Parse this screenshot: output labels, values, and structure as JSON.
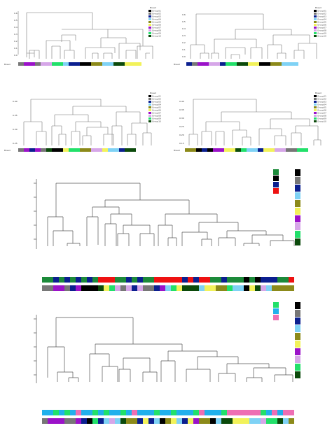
{
  "figure": {
    "panels": [
      {
        "id": "a",
        "strip_label": "Breed",
        "legend_label": "Breed",
        "legend_items": [
          "Group01",
          "Group02",
          "Group03",
          "Group04",
          "Group05",
          "Group06",
          "Group07",
          "Group08",
          "Group09",
          "Group10"
        ],
        "y_ticks": [
          "0.6",
          "0.5",
          "0.4",
          "0.3",
          "0.2",
          "0.1",
          "0.0"
        ]
      },
      {
        "id": "b",
        "strip_label": "Breed",
        "legend_label": "Breed",
        "legend_items": [
          "Group01",
          "Group02",
          "Group03",
          "Group04",
          "Group05",
          "Group06",
          "Group07",
          "Group08",
          "Group09",
          "Group10"
        ],
        "y_ticks": [
          "0.6",
          "0.5",
          "0.4",
          "0.3",
          "0.2",
          "0.1",
          "0.0"
        ]
      },
      {
        "id": "c",
        "strip_label": "Breed",
        "legend_label": "Breed",
        "legend_items": [
          "Group01",
          "Group02",
          "Group03",
          "Group04",
          "Group05",
          "Group06",
          "Group07",
          "Group08",
          "Group09",
          "Group10"
        ],
        "y_ticks": [
          "0.40",
          "0.35",
          "0.30",
          "0.25"
        ]
      },
      {
        "id": "d",
        "strip_label": "Breed",
        "legend_label": "Breed",
        "legend_items": [
          "Group01",
          "Group02",
          "Group03",
          "Group04",
          "Group05",
          "Group06",
          "Group07",
          "Group08",
          "Group09",
          "Group10"
        ],
        "y_ticks": [
          "0.40",
          "0.35",
          "0.30",
          "0.25",
          "0.20",
          "0.15"
        ]
      }
    ],
    "colors": {
      "black": "#000000",
      "gray": "#777777",
      "navy": "#0b1f8f",
      "skyblue": "#7fd2f5",
      "olive": "#8c8a1a",
      "yellow": "#f2f25a",
      "purple": "#9b12c9",
      "lavender": "#d6a6e8",
      "green": "#22e06a",
      "darkgreen": "#0b4a0b",
      "teal": "#1c8a3a",
      "red": "#ee1111",
      "cyan": "#21b0ec",
      "pink": "#ee6fb4"
    }
  }
}
